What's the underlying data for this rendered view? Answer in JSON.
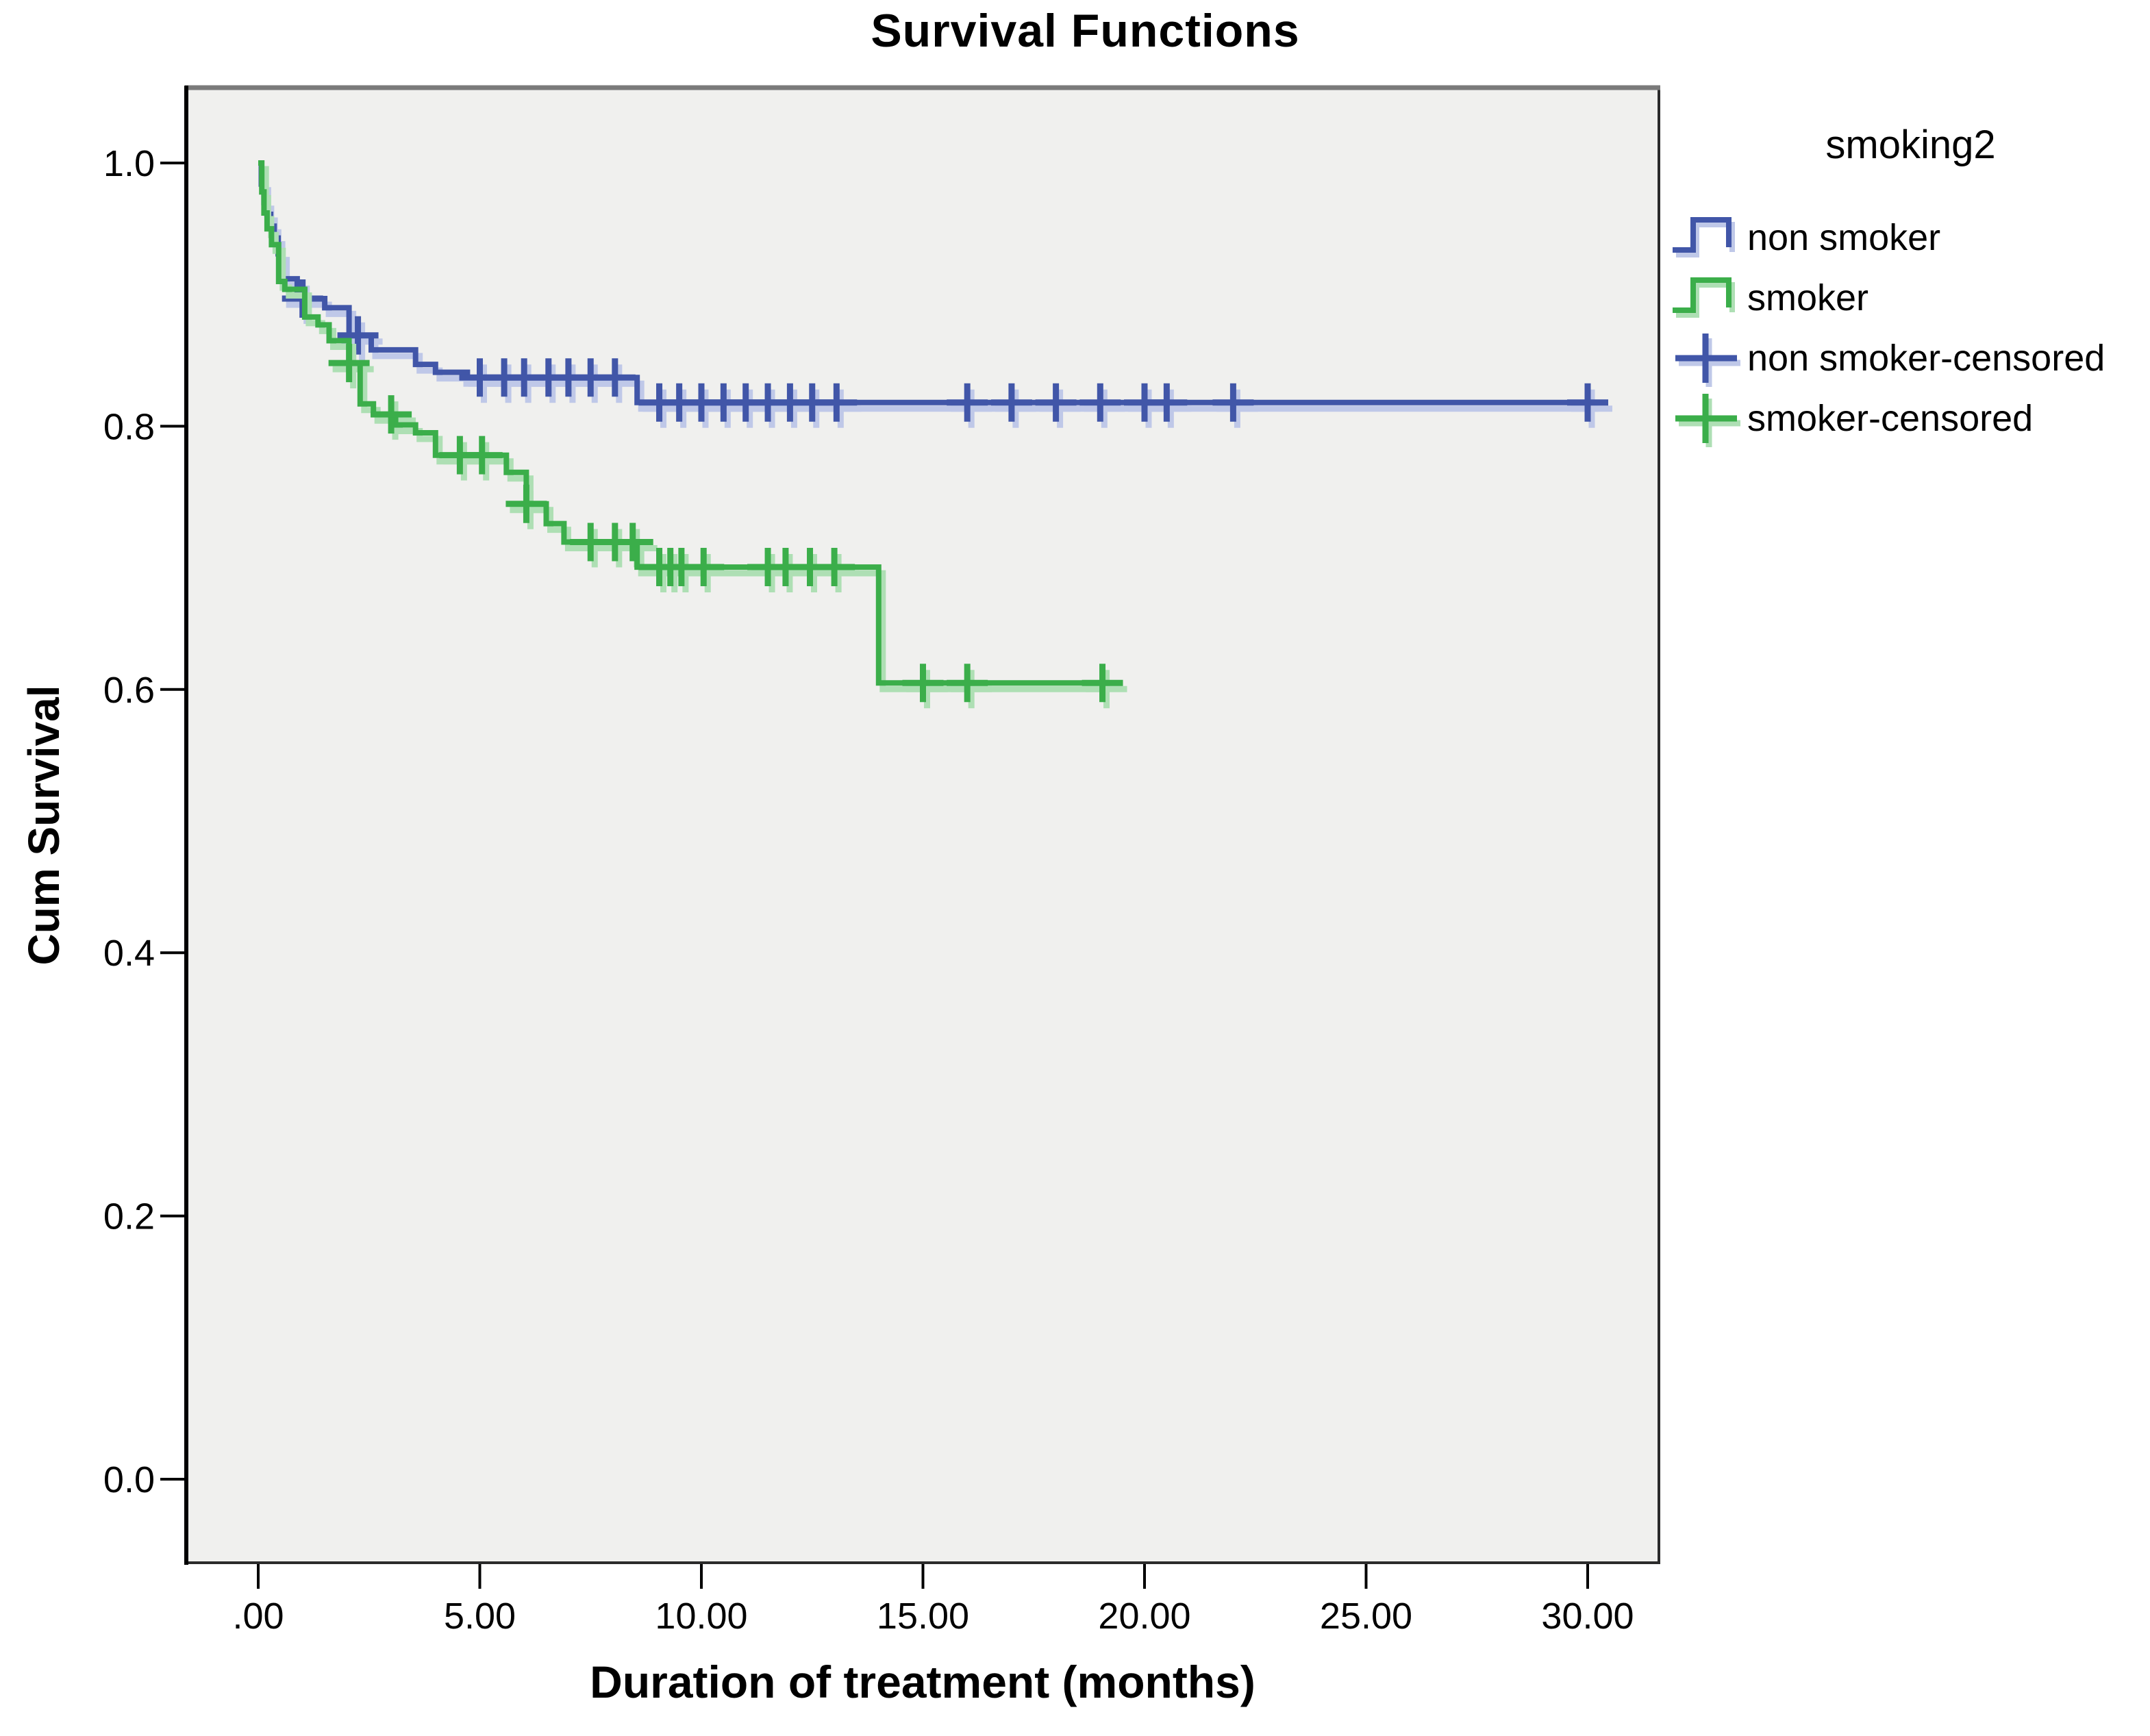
{
  "title": "Survival Functions",
  "x_axis": {
    "label": "Duration of treatment (months)",
    "tick_labels": [
      ".00",
      "5.00",
      "10.00",
      "15.00",
      "20.00",
      "25.00",
      "30.00"
    ]
  },
  "y_axis": {
    "label": "Cum Survival",
    "tick_labels": [
      "0.0",
      "0.2",
      "0.4",
      "0.6",
      "0.8",
      "1.0"
    ]
  },
  "legend": {
    "title": "smoking2",
    "entries": [
      {
        "label": "non smoker",
        "symbol": "step",
        "series": "non_smoker"
      },
      {
        "label": "smoker",
        "symbol": "step",
        "series": "smoker"
      },
      {
        "label": "non smoker-censored",
        "symbol": "plus",
        "series": "non_smoker"
      },
      {
        "label": "smoker-censored",
        "symbol": "plus",
        "series": "smoker"
      }
    ]
  },
  "colors": {
    "non_smoker": "#4156A8",
    "non_smoker_halo": "#BFC8E8",
    "smoker": "#3BAE4A",
    "smoker_halo": "#AEDfB4",
    "plot_bg": "#F0F0EE",
    "frame": "#2B2B2B",
    "frame_top": "#7A7A7A",
    "tick": "#000000"
  },
  "chart_data": {
    "type": "line",
    "subtype": "kaplan_meier_step",
    "title": "Survival Functions",
    "xlabel": "Duration of treatment (months)",
    "ylabel": "Cum Survival",
    "xlim": [
      -1.62,
      31.6
    ],
    "ylim": [
      -0.064,
      1.056
    ],
    "x_ticks": [
      0,
      5,
      10,
      15,
      20,
      25,
      30
    ],
    "y_ticks": [
      0.0,
      0.2,
      0.4,
      0.6,
      0.8,
      1.0
    ],
    "grid": false,
    "legend_position": "top-right",
    "series": [
      {
        "name": "non smoker",
        "color_key": "non_smoker",
        "steps": [
          [
            0.0,
            1.0
          ],
          [
            0.07,
            0.984
          ],
          [
            0.13,
            0.97
          ],
          [
            0.2,
            0.961
          ],
          [
            0.28,
            0.952
          ],
          [
            0.36,
            0.943
          ],
          [
            0.45,
            0.931
          ],
          [
            0.55,
            0.912
          ],
          [
            0.88,
            0.903
          ],
          [
            1.05,
            0.897
          ],
          [
            1.5,
            0.89
          ],
          [
            2.05,
            0.869
          ],
          [
            2.55,
            0.858
          ],
          [
            3.55,
            0.847
          ],
          [
            4.0,
            0.841
          ],
          [
            4.72,
            0.837
          ],
          [
            8.55,
            0.818
          ]
        ],
        "end_time": 30.15,
        "censored": [
          [
            1.0,
            0.897
          ],
          [
            2.25,
            0.869
          ],
          [
            5.0,
            0.837
          ],
          [
            5.55,
            0.837
          ],
          [
            6.0,
            0.837
          ],
          [
            6.55,
            0.837
          ],
          [
            7.0,
            0.837
          ],
          [
            7.5,
            0.837
          ],
          [
            8.05,
            0.837
          ],
          [
            9.05,
            0.818
          ],
          [
            9.5,
            0.818
          ],
          [
            10.0,
            0.818
          ],
          [
            10.5,
            0.818
          ],
          [
            11.0,
            0.818
          ],
          [
            11.5,
            0.818
          ],
          [
            12.0,
            0.818
          ],
          [
            12.5,
            0.818
          ],
          [
            13.05,
            0.818
          ],
          [
            16.0,
            0.818
          ],
          [
            17.0,
            0.818
          ],
          [
            18.0,
            0.818
          ],
          [
            19.0,
            0.818
          ],
          [
            20.0,
            0.818
          ],
          [
            20.5,
            0.818
          ],
          [
            22.0,
            0.818
          ],
          [
            30.0,
            0.818
          ]
        ]
      },
      {
        "name": "smoker",
        "color_key": "smoker",
        "steps": [
          [
            0.0,
            1.0
          ],
          [
            0.08,
            0.978
          ],
          [
            0.13,
            0.962
          ],
          [
            0.2,
            0.95
          ],
          [
            0.3,
            0.938
          ],
          [
            0.46,
            0.91
          ],
          [
            0.6,
            0.904
          ],
          [
            1.05,
            0.883
          ],
          [
            1.35,
            0.877
          ],
          [
            1.6,
            0.865
          ],
          [
            2.05,
            0.848
          ],
          [
            2.3,
            0.817
          ],
          [
            2.6,
            0.809
          ],
          [
            3.1,
            0.801
          ],
          [
            3.55,
            0.795
          ],
          [
            4.0,
            0.778
          ],
          [
            5.6,
            0.765
          ],
          [
            6.05,
            0.741
          ],
          [
            6.5,
            0.726
          ],
          [
            6.9,
            0.712
          ],
          [
            8.55,
            0.693
          ],
          [
            14.0,
            0.605
          ]
        ],
        "end_time": 19.1,
        "censored": [
          [
            2.05,
            0.848
          ],
          [
            3.0,
            0.809
          ],
          [
            4.55,
            0.778
          ],
          [
            5.05,
            0.778
          ],
          [
            6.05,
            0.741
          ],
          [
            7.5,
            0.712
          ],
          [
            8.05,
            0.712
          ],
          [
            8.45,
            0.712
          ],
          [
            9.05,
            0.693
          ],
          [
            9.3,
            0.693
          ],
          [
            9.55,
            0.693
          ],
          [
            10.05,
            0.693
          ],
          [
            11.5,
            0.693
          ],
          [
            11.9,
            0.693
          ],
          [
            12.45,
            0.693
          ],
          [
            13.0,
            0.693
          ],
          [
            15.0,
            0.605
          ],
          [
            16.0,
            0.605
          ],
          [
            19.05,
            0.605
          ]
        ]
      }
    ]
  }
}
